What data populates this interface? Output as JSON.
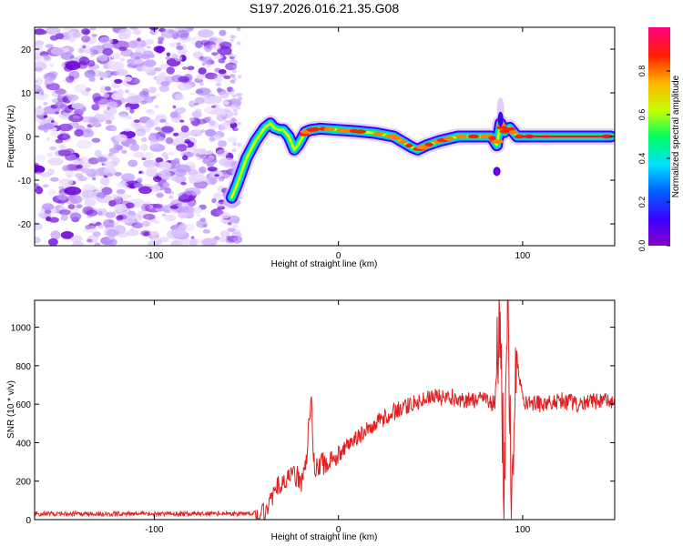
{
  "title": "S197.2026.016.21.35.G08",
  "colors": {
    "snr_line": "#e02020",
    "spectrogram_noise": "#8a2be2",
    "colorbar_stops": [
      "#8a00c8",
      "#3c00ff",
      "#0060ff",
      "#00e0ff",
      "#00ff60",
      "#c8ff00",
      "#ffb000",
      "#ff2000",
      "#ff0080"
    ]
  },
  "chart_data": [
    {
      "type": "heatmap",
      "title": "S197.2026.016.21.35.G08",
      "xlabel": "Height of straight line (km)",
      "ylabel": "Frequency (Hz)",
      "xlim": [
        -165,
        150
      ],
      "ylim": [
        -25,
        25
      ],
      "xticks": [
        -100,
        0,
        100
      ],
      "yticks": [
        -20,
        -10,
        0,
        10,
        20
      ],
      "noise_region_x": [
        -165,
        -55
      ],
      "ridge": {
        "x": [
          -58,
          -55,
          -50,
          -45,
          -40,
          -37,
          -35,
          -32,
          -30,
          -27,
          -24,
          -22,
          -18,
          -15,
          -10,
          0,
          10,
          20,
          30,
          40,
          43,
          48,
          55,
          65,
          75,
          83,
          86,
          88,
          90,
          93,
          97,
          105,
          120,
          135,
          148
        ],
        "freq": [
          -14,
          -11,
          -5,
          -1,
          2,
          3,
          2,
          1.5,
          1.5,
          0,
          -3,
          -2,
          1,
          1.5,
          1.8,
          1.5,
          1.2,
          0.8,
          0,
          -2.5,
          -3,
          -2,
          -1,
          0,
          0,
          0,
          -2,
          3,
          1,
          2,
          0,
          0,
          0,
          0,
          0
        ]
      },
      "colorbar": {
        "label": "Normalized spectral amplitude",
        "range": [
          0,
          1
        ],
        "ticks": [
          0.0,
          0.2,
          0.4,
          0.6,
          0.8
        ]
      }
    },
    {
      "type": "line",
      "xlabel": "Height of straight line (km)",
      "ylabel": "SNR (10 * v/v)",
      "xlim": [
        -165,
        150
      ],
      "ylim": [
        0,
        1140
      ],
      "xticks": [
        -100,
        0,
        100
      ],
      "yticks": [
        0,
        200,
        400,
        600,
        800,
        1000
      ],
      "series": [
        {
          "name": "SNR",
          "x": [
            -165,
            -120,
            -80,
            -50,
            -40,
            -35,
            -30,
            -25,
            -20,
            -17,
            -15,
            -13,
            -10,
            0,
            10,
            20,
            30,
            40,
            50,
            60,
            70,
            80,
            85,
            88,
            90,
            92,
            94,
            96,
            100,
            110,
            120,
            130,
            140,
            150
          ],
          "values": [
            30,
            30,
            30,
            30,
            40,
            130,
            210,
            240,
            200,
            350,
            650,
            250,
            280,
            340,
            420,
            500,
            560,
            600,
            630,
            640,
            620,
            620,
            600,
            1100,
            50,
            1130,
            30,
            900,
            620,
            600,
            620,
            600,
            610,
            620
          ]
        }
      ]
    }
  ]
}
